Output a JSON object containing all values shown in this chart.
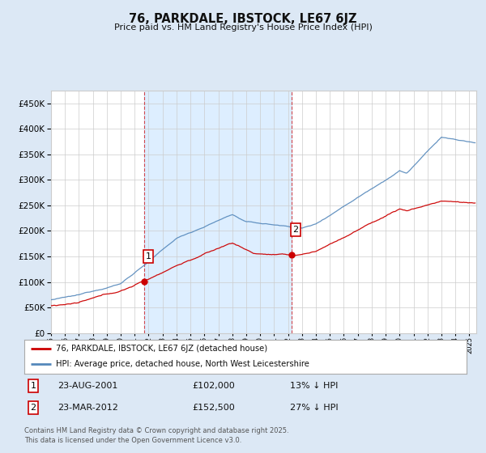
{
  "title": "76, PARKDALE, IBSTOCK, LE67 6JZ",
  "subtitle": "Price paid vs. HM Land Registry's House Price Index (HPI)",
  "red_label": "76, PARKDALE, IBSTOCK, LE67 6JZ (detached house)",
  "blue_label": "HPI: Average price, detached house, North West Leicestershire",
  "annotation1_box": "1",
  "annotation1_date": "23-AUG-2001",
  "annotation1_price": "£102,000",
  "annotation1_hpi": "13% ↓ HPI",
  "annotation2_box": "2",
  "annotation2_date": "23-MAR-2012",
  "annotation2_price": "£152,500",
  "annotation2_hpi": "27% ↓ HPI",
  "footnote": "Contains HM Land Registry data © Crown copyright and database right 2025.\nThis data is licensed under the Open Government Licence v3.0.",
  "ylim": [
    0,
    475000
  ],
  "yticks": [
    0,
    50000,
    100000,
    150000,
    200000,
    250000,
    300000,
    350000,
    400000,
    450000
  ],
  "background_color": "#dce8f5",
  "plot_background": "#ffffff",
  "highlight_color": "#ddeeff",
  "red_color": "#cc0000",
  "blue_color": "#5588bb",
  "sale1_year": 2001.648,
  "sale1_price": 102000,
  "sale2_year": 2012.23,
  "sale2_price": 152500,
  "grid_color": "#cccccc",
  "xmin": 1995,
  "xmax": 2025.5
}
